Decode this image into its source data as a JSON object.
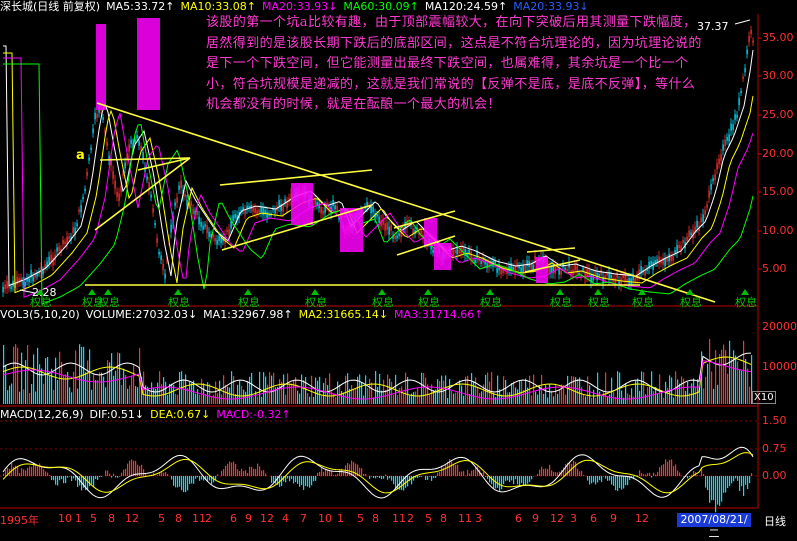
{
  "price_header": {
    "stock": "深长城(日线 前复权)",
    "ma5": "MA5:33.72↑",
    "ma10": "MA10:33.08↑",
    "ma20": "MA20:33.93↓",
    "ma60": "MA60:30.09↑",
    "ma120": "MA120:24.59↑",
    "ma20b": "MA20:33.93↓"
  },
  "vol_header": {
    "vol": "VOL3(5,10,20)",
    "volume": "VOLUME:27032.03↓",
    "ma1": "MA1:32967.98↑",
    "ma2": "MA2:31665.14↓",
    "ma3": "MA3:31714.66↑"
  },
  "macd_header": {
    "macd": "MACD(12,26,9)",
    "dif": "DIF:0.51↓",
    "dea": "DEA:0.67↓",
    "macdv": "MACD:-0.32↑"
  },
  "annotation": "该股的第一个坑a比较有趣，由于顶部震幅较大，在向下突破后用其测量下跌幅度，居然得到的是该股长期下跌后的底部区间，这点是不符合坑理论的，因为坑理论说的是下一个下跌空间，但它能测量出最终下跌空间，也属难得，其余坑是一个比一个小，符合坑规模是递减的，这就是我们常说的【反弹不是底，是底不反弹】，等什么机会都没有的时候，就是在酝酿一个最大的机会！",
  "label_a": "a",
  "price_high": "37.37",
  "price_low": "2.28",
  "hint_label": "权息",
  "x10": "X10",
  "price_axis": [
    "35.00",
    "30.00",
    "25.00",
    "20.00",
    "15.00",
    "10.00",
    "5.00"
  ],
  "vol_axis": [
    "20000",
    "10000"
  ],
  "macd_axis": [
    "1.50",
    "0.75",
    "0.00"
  ],
  "x_axis": [
    "1995年",
    "10",
    "1",
    "5",
    "8",
    "12",
    "5",
    "8",
    "11",
    "2",
    "6",
    "9",
    "12",
    "4",
    "7",
    "10",
    "1",
    "5",
    "8",
    "11",
    "2",
    "5",
    "8",
    "11",
    "3",
    "6",
    "9",
    "12",
    "3",
    "6",
    "9",
    "12"
  ],
  "date": "2007/08/21/二",
  "period": "日线",
  "colors": {
    "up": "#ff3030",
    "down": "#00e0ff",
    "ma_white": "#ffffff",
    "ma_yellow": "#ffff00",
    "ma_magenta": "#ff00ff",
    "ma_green": "#00ff00",
    "line": "#ffff40",
    "box": "#ff00ff"
  }
}
